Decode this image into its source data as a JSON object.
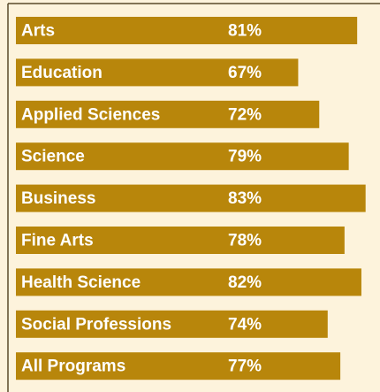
{
  "chart_data": {
    "type": "hbar",
    "categories": [
      "Arts",
      "Education",
      "Applied Sciences",
      "Science",
      "Business",
      "Fine Arts",
      "Health Science",
      "Social Professions",
      "All Programs"
    ],
    "values": [
      81,
      67,
      72,
      79,
      83,
      78,
      82,
      74,
      77
    ],
    "value_labels": [
      "81%",
      "67%",
      "72%",
      "79%",
      "83%",
      "78%",
      "82%",
      "74%",
      "77%"
    ],
    "color": "#b8860b",
    "xlim": [
      0,
      86
    ]
  }
}
